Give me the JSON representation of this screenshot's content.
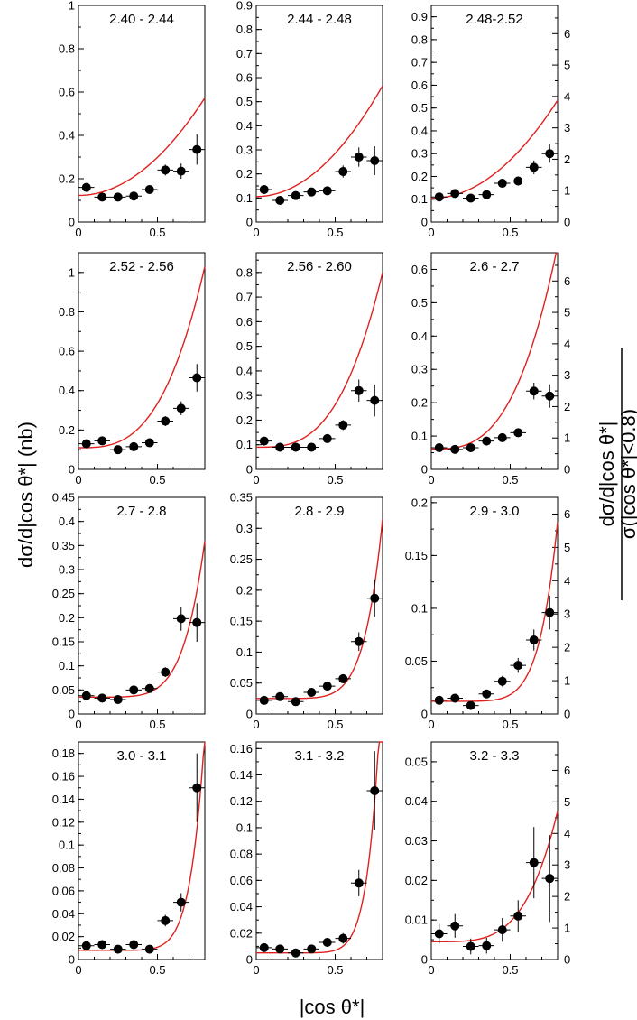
{
  "figure": {
    "xlabel": "|cos θ*|",
    "ylabel_left": "dσ/d|cos θ*| (nb)",
    "ylabel_right_num": "dσ/d|cos θ*|",
    "ylabel_right_den": "σ(|cos θ*|<0.8)",
    "colors": {
      "fit": "#e0201e",
      "data": "#000000",
      "axes": "#000000"
    }
  },
  "chart_data": [
    {
      "type": "scatter",
      "title": "2.40 - 2.44",
      "xlim": [
        0,
        0.8
      ],
      "ylim": [
        0,
        1.0
      ],
      "yticks": [
        "0",
        "0.2",
        "0.4",
        "0.6",
        "0.8",
        "1"
      ],
      "y2ticks": [],
      "xticks": [
        "0",
        "0.5"
      ],
      "x": [
        0.05,
        0.15,
        0.25,
        0.35,
        0.45,
        0.55,
        0.65,
        0.75
      ],
      "y": [
        0.16,
        0.115,
        0.115,
        0.12,
        0.15,
        0.24,
        0.235,
        0.335
      ],
      "yerr": [
        0.01,
        0.01,
        0.01,
        0.01,
        0.015,
        0.025,
        0.035,
        0.07
      ],
      "fit": {
        "a": 0.123,
        "b": 0.45,
        "p": 2
      }
    },
    {
      "type": "scatter",
      "title": "2.44 - 2.48",
      "xlim": [
        0,
        0.8
      ],
      "ylim": [
        0,
        0.9
      ],
      "yticks": [
        "0",
        "0.1",
        "0.2",
        "0.3",
        "0.4",
        "0.5",
        "0.6",
        "0.7",
        "0.8",
        "0.9"
      ],
      "y2ticks": [],
      "xticks": [
        "0",
        "0.5"
      ],
      "x": [
        0.05,
        0.15,
        0.25,
        0.35,
        0.45,
        0.55,
        0.65,
        0.75
      ],
      "y": [
        0.135,
        0.09,
        0.11,
        0.125,
        0.13,
        0.21,
        0.27,
        0.255
      ],
      "yerr": [
        0.01,
        0.01,
        0.01,
        0.01,
        0.015,
        0.025,
        0.04,
        0.06
      ],
      "fit": {
        "a": 0.106,
        "b": 0.46,
        "p": 2
      }
    },
    {
      "type": "scatter",
      "title": "2.48-2.52",
      "xlim": [
        0,
        0.8
      ],
      "ylim": [
        0,
        0.95
      ],
      "yticks": [
        "0",
        "0.1",
        "0.2",
        "0.3",
        "0.4",
        "0.5",
        "0.6",
        "0.7",
        "0.8",
        "0.9"
      ],
      "y2max": 6.9,
      "y2ticks": [
        "0",
        "1",
        "2",
        "3",
        "4",
        "5",
        "6"
      ],
      "xticks": [
        "0",
        "0.5"
      ],
      "x": [
        0.05,
        0.15,
        0.25,
        0.35,
        0.45,
        0.55,
        0.65,
        0.75
      ],
      "y": [
        0.11,
        0.125,
        0.105,
        0.12,
        0.17,
        0.18,
        0.24,
        0.3
      ],
      "yerr": [
        0.01,
        0.01,
        0.01,
        0.01,
        0.015,
        0.02,
        0.03,
        0.04
      ],
      "fit": {
        "a": 0.104,
        "b": 0.43,
        "p": 2
      }
    },
    {
      "type": "scatter",
      "title": "2.52 - 2.56",
      "xlim": [
        0,
        0.8
      ],
      "ylim": [
        0,
        1.1
      ],
      "yticks": [
        "0",
        "0.2",
        "0.4",
        "0.6",
        "0.8",
        "1"
      ],
      "y2ticks": [],
      "xticks": [
        "0",
        "0.5"
      ],
      "x": [
        0.05,
        0.15,
        0.25,
        0.35,
        0.45,
        0.55,
        0.65,
        0.75
      ],
      "y": [
        0.13,
        0.145,
        0.1,
        0.115,
        0.135,
        0.245,
        0.31,
        0.465
      ],
      "yerr": [
        0.01,
        0.01,
        0.01,
        0.01,
        0.015,
        0.025,
        0.035,
        0.07
      ],
      "fit": {
        "a": 0.11,
        "b": 0.92,
        "p": 3
      }
    },
    {
      "type": "scatter",
      "title": "2.56 - 2.60",
      "xlim": [
        0,
        0.8
      ],
      "ylim": [
        0,
        0.88
      ],
      "yticks": [
        "0",
        "0.1",
        "0.2",
        "0.3",
        "0.4",
        "0.5",
        "0.6",
        "0.7",
        "0.8"
      ],
      "y2ticks": [],
      "xticks": [
        "0",
        "0.5"
      ],
      "x": [
        0.05,
        0.15,
        0.25,
        0.35,
        0.45,
        0.55,
        0.65,
        0.75
      ],
      "y": [
        0.115,
        0.09,
        0.09,
        0.09,
        0.125,
        0.18,
        0.32,
        0.28
      ],
      "yerr": [
        0.01,
        0.01,
        0.01,
        0.01,
        0.015,
        0.02,
        0.045,
        0.065
      ],
      "fit": {
        "a": 0.09,
        "b": 0.71,
        "p": 3
      }
    },
    {
      "type": "scatter",
      "title": "2.6 - 2.7",
      "xlim": [
        0,
        0.8
      ],
      "ylim": [
        0,
        0.65
      ],
      "yticks": [
        "0",
        "0.1",
        "0.2",
        "0.3",
        "0.4",
        "0.5",
        "0.6"
      ],
      "y2max": 6.9,
      "y2ticks": [
        "0",
        "1",
        "2",
        "3",
        "4",
        "5",
        "6"
      ],
      "xticks": [
        "0",
        "0.5"
      ],
      "x": [
        0.05,
        0.15,
        0.25,
        0.35,
        0.45,
        0.55,
        0.65,
        0.75
      ],
      "y": [
        0.065,
        0.06,
        0.065,
        0.085,
        0.095,
        0.11,
        0.235,
        0.22
      ],
      "yerr": [
        0.008,
        0.008,
        0.008,
        0.008,
        0.01,
        0.012,
        0.025,
        0.035
      ],
      "fit": {
        "a": 0.061,
        "b": 0.61,
        "p": 3
      }
    },
    {
      "type": "scatter",
      "title": "2.7 - 2.8",
      "xlim": [
        0,
        0.8
      ],
      "ylim": [
        0,
        0.45
      ],
      "yticks": [
        "0",
        "0.05",
        "0.1",
        "0.15",
        "0.2",
        "0.25",
        "0.3",
        "0.35",
        "0.4",
        "0.45"
      ],
      "y2ticks": [],
      "xticks": [
        "0",
        "0.5"
      ],
      "x": [
        0.05,
        0.15,
        0.25,
        0.35,
        0.45,
        0.55,
        0.65,
        0.75
      ],
      "y": [
        0.038,
        0.033,
        0.03,
        0.05,
        0.053,
        0.087,
        0.198,
        0.19
      ],
      "yerr": [
        0.006,
        0.005,
        0.005,
        0.005,
        0.006,
        0.01,
        0.025,
        0.04
      ],
      "fit": {
        "a": 0.035,
        "b": 0.325,
        "p": 6
      }
    },
    {
      "type": "scatter",
      "title": "2.8 - 2.9",
      "xlim": [
        0,
        0.8
      ],
      "ylim": [
        0,
        0.35
      ],
      "yticks": [
        "0",
        "0.05",
        "0.1",
        "0.15",
        "0.2",
        "0.25",
        "0.3",
        "0.35"
      ],
      "y2ticks": [],
      "xticks": [
        "0",
        "0.5"
      ],
      "x": [
        0.05,
        0.15,
        0.25,
        0.35,
        0.45,
        0.55,
        0.65,
        0.75
      ],
      "y": [
        0.022,
        0.028,
        0.02,
        0.035,
        0.045,
        0.057,
        0.117,
        0.187
      ],
      "yerr": [
        0.004,
        0.004,
        0.004,
        0.005,
        0.005,
        0.007,
        0.015,
        0.03
      ],
      "fit": {
        "a": 0.025,
        "b": 0.29,
        "p": 7
      }
    },
    {
      "type": "scatter",
      "title": "2.9 - 3.0",
      "xlim": [
        0,
        0.8
      ],
      "ylim": [
        0,
        0.205
      ],
      "yticks": [
        "0",
        "0.05",
        "0.1",
        "0.15",
        "0.2"
      ],
      "y2max": 6.5,
      "y2ticks": [
        "0",
        "1",
        "2",
        "3",
        "4",
        "5",
        "6"
      ],
      "xticks": [
        "0",
        "0.5"
      ],
      "x": [
        0.05,
        0.15,
        0.25,
        0.35,
        0.45,
        0.55,
        0.65,
        0.75
      ],
      "y": [
        0.013,
        0.015,
        0.008,
        0.019,
        0.031,
        0.046,
        0.07,
        0.096
      ],
      "yerr": [
        0.003,
        0.003,
        0.003,
        0.004,
        0.005,
        0.007,
        0.01,
        0.016
      ],
      "fit": {
        "a": 0.012,
        "b": 0.17,
        "p": 7
      }
    },
    {
      "type": "scatter",
      "title": "3.0 - 3.1",
      "xlim": [
        0,
        0.8
      ],
      "ylim": [
        0,
        0.19
      ],
      "yticks": [
        "0",
        "0.02",
        "0.04",
        "0.06",
        "0.08",
        "0.1",
        "0.12",
        "0.14",
        "0.16",
        "0.18"
      ],
      "y2ticks": [],
      "xticks": [
        "0",
        "0.5"
      ],
      "x": [
        0.05,
        0.15,
        0.25,
        0.35,
        0.45,
        0.55,
        0.65,
        0.75
      ],
      "y": [
        0.012,
        0.013,
        0.009,
        0.013,
        0.009,
        0.034,
        0.05,
        0.15
      ],
      "yerr": [
        0.002,
        0.002,
        0.002,
        0.002,
        0.002,
        0.005,
        0.008,
        0.03
      ],
      "fit": {
        "a": 0.008,
        "b": 0.19,
        "p": 9
      }
    },
    {
      "type": "scatter",
      "title": "3.1 - 3.2",
      "xlim": [
        0,
        0.8
      ],
      "ylim": [
        0,
        0.165
      ],
      "yticks": [
        "0",
        "0.02",
        "0.04",
        "0.06",
        "0.08",
        "0.1",
        "0.12",
        "0.14",
        "0.16"
      ],
      "y2ticks": [],
      "xticks": [
        "0",
        "0.5"
      ],
      "x": [
        0.05,
        0.15,
        0.25,
        0.35,
        0.45,
        0.55,
        0.65,
        0.75
      ],
      "y": [
        0.009,
        0.008,
        0.005,
        0.008,
        0.013,
        0.016,
        0.058,
        0.128
      ],
      "yerr": [
        0.002,
        0.002,
        0.002,
        0.002,
        0.002,
        0.004,
        0.01,
        0.03
      ],
      "fit": {
        "a": 0.005,
        "b": 0.22,
        "p": 10
      }
    },
    {
      "type": "scatter",
      "title": "3.2 - 3.3",
      "xlim": [
        0,
        0.8
      ],
      "ylim": [
        0,
        0.055
      ],
      "yticks": [
        "0",
        "0.01",
        "0.02",
        "0.03",
        "0.04",
        "0.05"
      ],
      "y2max": 6.9,
      "y2ticks": [
        "0",
        "1",
        "2",
        "3",
        "4",
        "5",
        "6"
      ],
      "xticks": [
        "0",
        "0.5"
      ],
      "x": [
        0.05,
        0.15,
        0.25,
        0.35,
        0.45,
        0.55,
        0.65,
        0.75
      ],
      "y": [
        0.0065,
        0.0085,
        0.0033,
        0.0035,
        0.0075,
        0.011,
        0.0245,
        0.0205
      ],
      "yerr": [
        0.0025,
        0.003,
        0.002,
        0.002,
        0.003,
        0.004,
        0.009,
        0.011
      ],
      "fit": {
        "a": 0.0045,
        "b": 0.033,
        "p": 4
      }
    }
  ]
}
